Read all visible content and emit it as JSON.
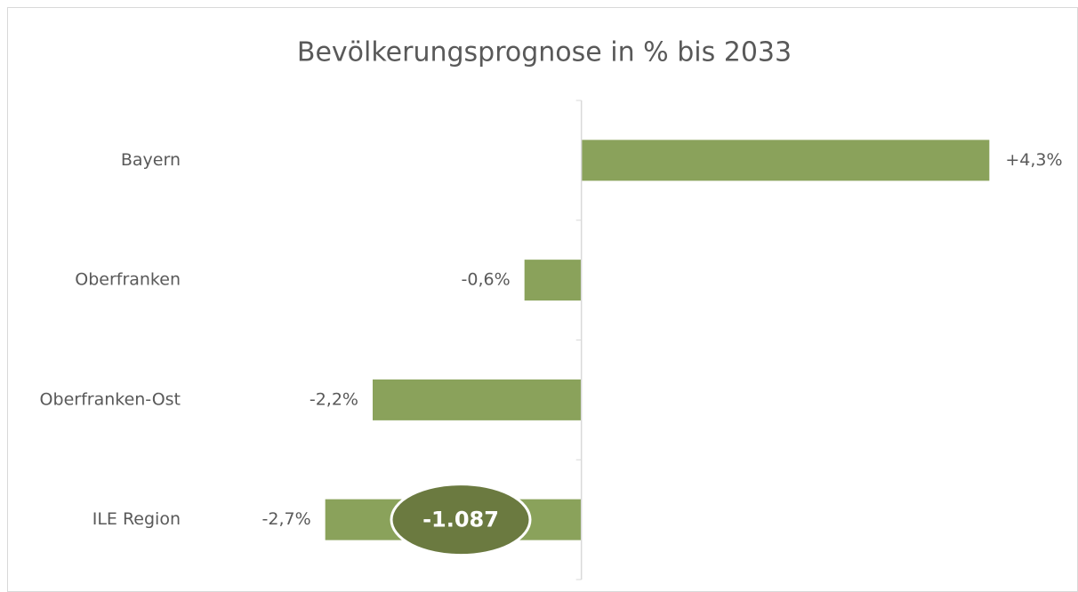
{
  "chart_data": {
    "type": "bar",
    "orientation": "horizontal",
    "title": "Bevölkerungsprognose in % bis 2033",
    "categories": [
      "Bayern",
      "Oberfranken",
      "Oberfranken-Ost",
      "ILE Region"
    ],
    "values": [
      4.3,
      -0.6,
      -2.2,
      -2.7
    ],
    "value_labels": [
      "+4,3%",
      "-0,6%",
      "-2,2%",
      "-2,7%"
    ],
    "color": "#8aa25b",
    "xlim": [
      -4,
      5
    ],
    "annotation": "-1.087",
    "annotation_color": "#6b7a40"
  }
}
